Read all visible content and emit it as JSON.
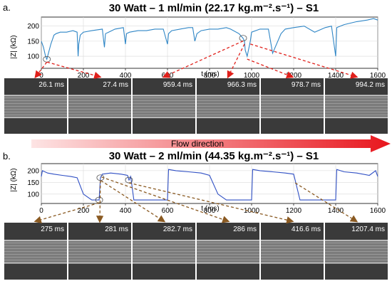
{
  "panels": [
    {
      "label": "a.",
      "title": "30 Watt – 1 ml/min (22.17 kg.m⁻².s⁻¹) – S1",
      "xlabel": "t (ms)",
      "ylabel": "|Z| (kΩ)",
      "xlim": [
        0,
        1600
      ],
      "ylim": [
        60,
        230
      ],
      "xticks": [
        0,
        200,
        400,
        600,
        800,
        1000,
        1200,
        1400,
        1600
      ],
      "yticks": [
        100,
        150,
        200
      ],
      "series_color": "#2f86c6",
      "frames": [
        "26.1 ms",
        "27.4 ms",
        "959.4 ms",
        "966.3 ms",
        "978.7 ms",
        "994.2 ms"
      ],
      "arrow_color": "#e0201b",
      "chart_data": {
        "type": "line",
        "x": [
          0,
          10,
          20,
          26,
          30,
          45,
          60,
          70,
          90,
          120,
          150,
          170,
          175,
          178,
          185,
          200,
          240,
          290,
          300,
          305,
          320,
          350,
          390,
          400,
          405,
          420,
          460,
          500,
          540,
          580,
          600,
          605,
          620,
          660,
          700,
          720,
          730,
          740,
          760,
          800,
          840,
          880,
          900,
          940,
          959,
          966,
          970,
          979,
          994,
          1000,
          1040,
          1080,
          1100,
          1140,
          1160,
          1200,
          1250,
          1300,
          1350,
          1380,
          1400,
          1405,
          1440,
          1470,
          1500,
          1550,
          1580,
          1600
        ],
        "y": [
          150,
          130,
          100,
          90,
          100,
          140,
          170,
          175,
          180,
          180,
          185,
          180,
          100,
          140,
          170,
          180,
          185,
          190,
          130,
          175,
          180,
          190,
          195,
          140,
          175,
          180,
          185,
          185,
          190,
          190,
          140,
          175,
          185,
          190,
          195,
          195,
          150,
          175,
          185,
          190,
          190,
          195,
          190,
          175,
          160,
          150,
          120,
          100,
          150,
          180,
          190,
          190,
          110,
          175,
          190,
          195,
          200,
          180,
          195,
          200,
          100,
          195,
          205,
          210,
          215,
          220,
          225,
          220
        ]
      }
    },
    {
      "label": "b.",
      "title": "30 Watt – 2 ml/min (44.35 kg.m⁻².s⁻¹) – S1",
      "xlabel": "t (ms)",
      "ylabel": "|Z| (kΩ)",
      "xlim": [
        0,
        1600
      ],
      "ylim": [
        60,
        230
      ],
      "xticks": [
        0,
        200,
        400,
        600,
        800,
        1000,
        1200,
        1400,
        1600
      ],
      "yticks": [
        100,
        150,
        200
      ],
      "series_color": "#2f4fc4",
      "frames": [
        "275 ms",
        "281 ms",
        "282.7 ms",
        "286 ms",
        "416.6 ms",
        "1207.4 ms"
      ],
      "arrow_color": "#8a5a22",
      "chart_data": {
        "type": "line",
        "x": [
          0,
          5,
          30,
          60,
          100,
          140,
          170,
          200,
          240,
          275,
          281,
          290,
          330,
          380,
          410,
          417,
          425,
          440,
          480,
          560,
          600,
          605,
          640,
          700,
          760,
          800,
          840,
          880,
          960,
          1000,
          1005,
          1040,
          1100,
          1160,
          1200,
          1207,
          1230,
          1280,
          1360,
          1400,
          1405,
          1440,
          1500,
          1560,
          1590,
          1600
        ],
        "y": [
          175,
          200,
          190,
          185,
          180,
          175,
          170,
          100,
          75,
          75,
          170,
          185,
          190,
          185,
          180,
          160,
          175,
          75,
          75,
          75,
          75,
          205,
          200,
          195,
          190,
          180,
          100,
          75,
          75,
          75,
          205,
          200,
          195,
          190,
          185,
          160,
          75,
          75,
          75,
          75,
          205,
          195,
          190,
          180,
          200,
          175
        ]
      }
    }
  ],
  "flow": {
    "label": "Flow direction",
    "color_start": "#fde4e4",
    "color_end": "#e8161d"
  }
}
